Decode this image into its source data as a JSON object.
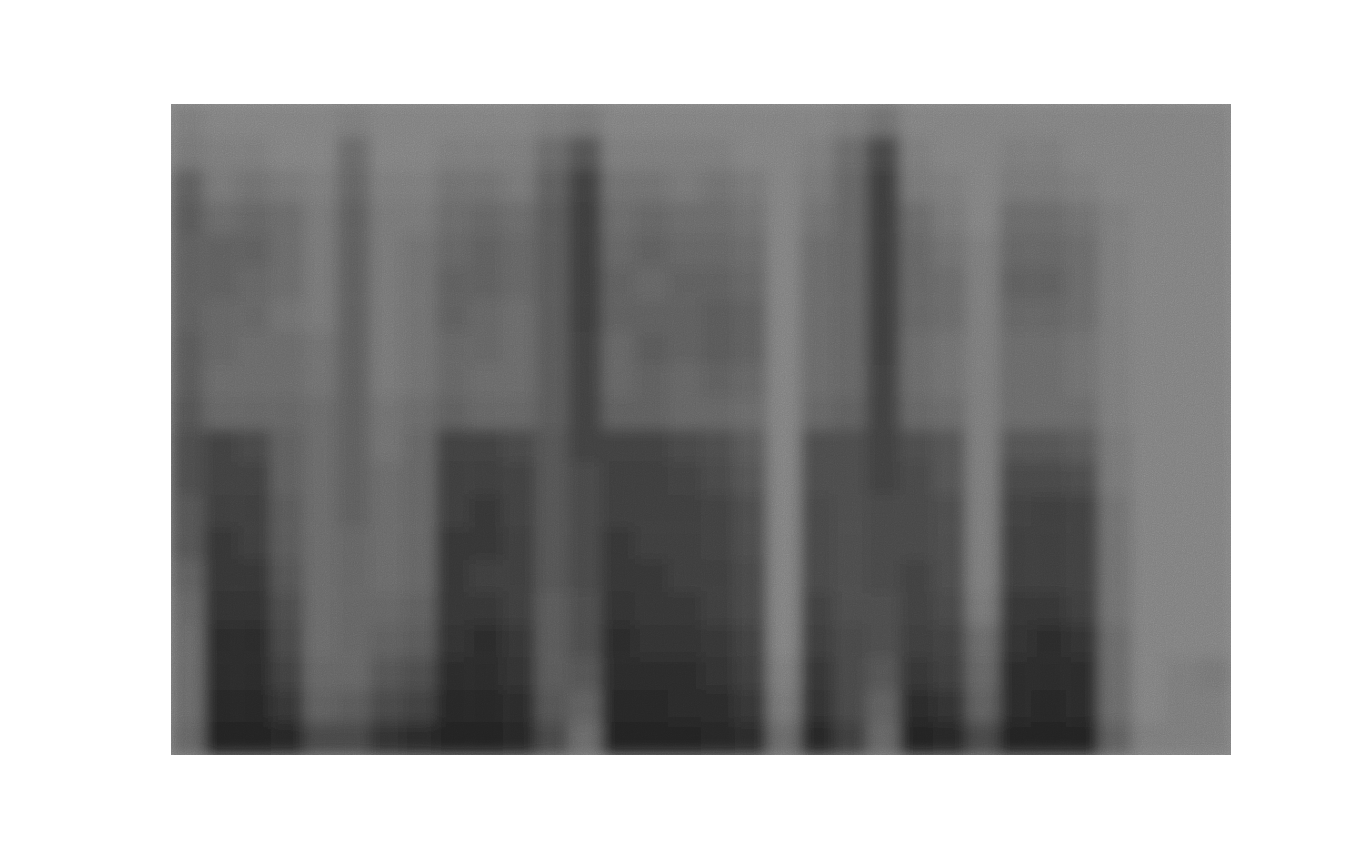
{
  "chart_data": {
    "type": "heatmap",
    "tick_labels": false,
    "zlim": [
      0,
      1
    ],
    "cells": [
      [
        0.15,
        0.2,
        0.4,
        0.45,
        0.4,
        0.4,
        0.4,
        0.45,
        0.45,
        0.5,
        0.55,
        0.55,
        0.5,
        0.5,
        0.4,
        0.35,
        0.3,
        0.3,
        0.3,
        0.35
      ],
      [
        0.1,
        0.15,
        0.2,
        0.3,
        0.4,
        0.4,
        0.35,
        0.35,
        0.3,
        0.35,
        0.65,
        0.65,
        0.7,
        0.75,
        0.75,
        0.8,
        0.85,
        0.85,
        0.9,
        0.95
      ],
      [
        0.1,
        0.15,
        0.25,
        0.35,
        0.4,
        0.35,
        0.35,
        0.3,
        0.3,
        0.35,
        0.6,
        0.65,
        0.7,
        0.7,
        0.75,
        0.8,
        0.85,
        0.85,
        0.9,
        0.95
      ],
      [
        0.1,
        0.1,
        0.2,
        0.3,
        0.3,
        0.3,
        0.25,
        0.3,
        0.3,
        0.35,
        0.4,
        0.4,
        0.45,
        0.45,
        0.5,
        0.55,
        0.6,
        0.65,
        0.75,
        0.9
      ],
      [
        0.1,
        0.1,
        0.15,
        0.2,
        0.2,
        0.2,
        0.2,
        0.25,
        0.25,
        0.3,
        0.3,
        0.3,
        0.3,
        0.3,
        0.3,
        0.3,
        0.3,
        0.35,
        0.4,
        0.6
      ],
      [
        0.15,
        0.3,
        0.35,
        0.4,
        0.4,
        0.4,
        0.4,
        0.4,
        0.4,
        0.4,
        0.4,
        0.4,
        0.4,
        0.35,
        0.35,
        0.35,
        0.35,
        0.35,
        0.45,
        0.6
      ],
      [
        0.1,
        0.1,
        0.15,
        0.2,
        0.2,
        0.2,
        0.2,
        0.2,
        0.2,
        0.25,
        0.25,
        0.3,
        0.3,
        0.3,
        0.3,
        0.35,
        0.4,
        0.5,
        0.6,
        0.8
      ],
      [
        0.1,
        0.1,
        0.15,
        0.2,
        0.25,
        0.25,
        0.25,
        0.25,
        0.25,
        0.3,
        0.35,
        0.35,
        0.35,
        0.35,
        0.35,
        0.4,
        0.45,
        0.55,
        0.65,
        0.85
      ],
      [
        0.1,
        0.15,
        0.25,
        0.3,
        0.35,
        0.4,
        0.4,
        0.35,
        0.35,
        0.4,
        0.65,
        0.7,
        0.7,
        0.75,
        0.75,
        0.75,
        0.8,
        0.85,
        0.9,
        0.95
      ],
      [
        0.1,
        0.15,
        0.25,
        0.35,
        0.4,
        0.4,
        0.35,
        0.35,
        0.3,
        0.35,
        0.65,
        0.7,
        0.75,
        0.75,
        0.7,
        0.75,
        0.85,
        0.85,
        0.9,
        0.95
      ],
      [
        0.1,
        0.15,
        0.2,
        0.3,
        0.35,
        0.35,
        0.3,
        0.3,
        0.3,
        0.35,
        0.6,
        0.65,
        0.65,
        0.7,
        0.7,
        0.7,
        0.75,
        0.8,
        0.85,
        0.9
      ],
      [
        0.15,
        0.3,
        0.4,
        0.45,
        0.45,
        0.45,
        0.45,
        0.45,
        0.45,
        0.45,
        0.5,
        0.5,
        0.5,
        0.5,
        0.5,
        0.45,
        0.45,
        0.45,
        0.5,
        0.6
      ],
      [
        0.2,
        0.5,
        0.65,
        0.7,
        0.7,
        0.7,
        0.7,
        0.65,
        0.65,
        0.65,
        0.65,
        0.6,
        0.6,
        0.6,
        0.6,
        0.55,
        0.55,
        0.5,
        0.4,
        0.3
      ],
      [
        0.1,
        0.15,
        0.25,
        0.3,
        0.35,
        0.4,
        0.4,
        0.35,
        0.35,
        0.4,
        0.65,
        0.7,
        0.7,
        0.75,
        0.75,
        0.8,
        0.85,
        0.85,
        0.9,
        0.95
      ],
      [
        0.1,
        0.15,
        0.25,
        0.35,
        0.4,
        0.35,
        0.4,
        0.45,
        0.4,
        0.4,
        0.65,
        0.7,
        0.7,
        0.7,
        0.75,
        0.75,
        0.8,
        0.85,
        0.9,
        0.95
      ],
      [
        0.1,
        0.15,
        0.2,
        0.3,
        0.35,
        0.4,
        0.4,
        0.4,
        0.35,
        0.35,
        0.6,
        0.65,
        0.7,
        0.7,
        0.7,
        0.75,
        0.8,
        0.85,
        0.85,
        0.95
      ],
      [
        0.1,
        0.15,
        0.25,
        0.3,
        0.35,
        0.4,
        0.45,
        0.45,
        0.4,
        0.35,
        0.55,
        0.6,
        0.65,
        0.65,
        0.7,
        0.7,
        0.75,
        0.8,
        0.85,
        0.9
      ],
      [
        0.1,
        0.1,
        0.2,
        0.25,
        0.3,
        0.35,
        0.4,
        0.4,
        0.35,
        0.3,
        0.45,
        0.5,
        0.55,
        0.55,
        0.6,
        0.6,
        0.65,
        0.7,
        0.75,
        0.85
      ],
      [
        0.1,
        0.1,
        0.1,
        0.1,
        0.1,
        0.1,
        0.1,
        0.1,
        0.1,
        0.1,
        0.1,
        0.1,
        0.1,
        0.1,
        0.1,
        0.1,
        0.1,
        0.15,
        0.2,
        0.3
      ],
      [
        0.1,
        0.15,
        0.2,
        0.25,
        0.3,
        0.3,
        0.3,
        0.3,
        0.3,
        0.35,
        0.55,
        0.55,
        0.6,
        0.6,
        0.6,
        0.65,
        0.7,
        0.75,
        0.8,
        0.9
      ],
      [
        0.15,
        0.3,
        0.35,
        0.35,
        0.35,
        0.35,
        0.35,
        0.35,
        0.35,
        0.4,
        0.55,
        0.55,
        0.55,
        0.55,
        0.55,
        0.55,
        0.6,
        0.6,
        0.6,
        0.7
      ],
      [
        0.25,
        0.6,
        0.7,
        0.7,
        0.7,
        0.7,
        0.7,
        0.7,
        0.65,
        0.65,
        0.65,
        0.65,
        0.6,
        0.6,
        0.6,
        0.55,
        0.55,
        0.5,
        0.4,
        0.35
      ],
      [
        0.1,
        0.15,
        0.2,
        0.3,
        0.35,
        0.35,
        0.35,
        0.3,
        0.3,
        0.35,
        0.55,
        0.6,
        0.6,
        0.6,
        0.65,
        0.65,
        0.7,
        0.75,
        0.85,
        0.95
      ],
      [
        0.1,
        0.1,
        0.15,
        0.2,
        0.25,
        0.3,
        0.3,
        0.25,
        0.25,
        0.3,
        0.5,
        0.5,
        0.55,
        0.55,
        0.55,
        0.6,
        0.65,
        0.7,
        0.8,
        0.9
      ],
      [
        0.1,
        0.1,
        0.1,
        0.1,
        0.15,
        0.15,
        0.15,
        0.15,
        0.15,
        0.15,
        0.15,
        0.15,
        0.15,
        0.15,
        0.15,
        0.2,
        0.3,
        0.35,
        0.4,
        0.6
      ],
      [
        0.1,
        0.15,
        0.2,
        0.3,
        0.35,
        0.4,
        0.35,
        0.3,
        0.3,
        0.3,
        0.5,
        0.6,
        0.65,
        0.7,
        0.7,
        0.75,
        0.8,
        0.85,
        0.85,
        0.95
      ],
      [
        0.1,
        0.15,
        0.2,
        0.3,
        0.35,
        0.4,
        0.35,
        0.3,
        0.3,
        0.3,
        0.5,
        0.6,
        0.7,
        0.7,
        0.7,
        0.75,
        0.85,
        0.85,
        0.9,
        0.95
      ],
      [
        0.1,
        0.1,
        0.15,
        0.25,
        0.3,
        0.3,
        0.3,
        0.25,
        0.25,
        0.3,
        0.45,
        0.55,
        0.65,
        0.65,
        0.65,
        0.7,
        0.8,
        0.85,
        0.85,
        0.95
      ],
      [
        0.1,
        0.1,
        0.1,
        0.15,
        0.15,
        0.15,
        0.15,
        0.15,
        0.15,
        0.15,
        0.2,
        0.2,
        0.25,
        0.25,
        0.25,
        0.25,
        0.3,
        0.3,
        0.3,
        0.4
      ],
      [
        0.1,
        0.1,
        0.1,
        0.1,
        0.1,
        0.1,
        0.1,
        0.1,
        0.1,
        0.1,
        0.1,
        0.1,
        0.1,
        0.1,
        0.1,
        0.1,
        0.1,
        0.1,
        0.1,
        0.15
      ],
      [
        0.1,
        0.1,
        0.1,
        0.1,
        0.1,
        0.1,
        0.1,
        0.1,
        0.1,
        0.1,
        0.1,
        0.1,
        0.1,
        0.1,
        0.1,
        0.1,
        0.1,
        0.15,
        0.15,
        0.15
      ],
      [
        0.1,
        0.1,
        0.1,
        0.1,
        0.1,
        0.1,
        0.1,
        0.1,
        0.1,
        0.1,
        0.1,
        0.1,
        0.1,
        0.1,
        0.1,
        0.1,
        0.1,
        0.2,
        0.15,
        0.15
      ]
    ]
  }
}
